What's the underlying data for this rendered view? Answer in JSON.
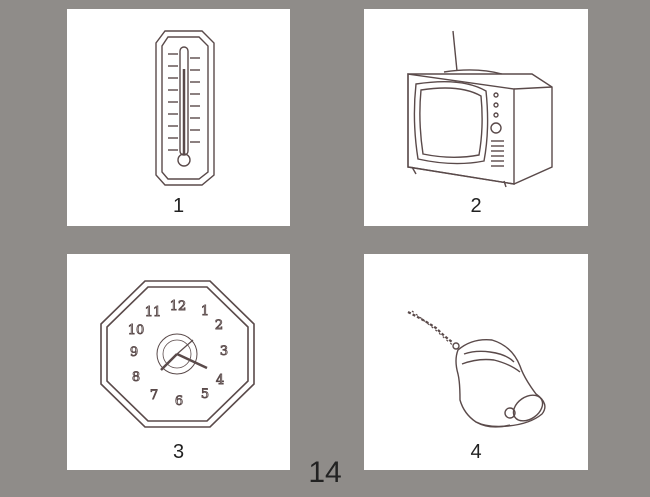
{
  "cards": [
    {
      "number": "1",
      "icon": "thermometer-icon"
    },
    {
      "number": "2",
      "icon": "television-icon"
    },
    {
      "number": "3",
      "icon": "wall-clock-icon",
      "clock_numerals": [
        "12",
        "1",
        "2",
        "3",
        "4",
        "5",
        "6",
        "7",
        "8",
        "9",
        "10",
        "11"
      ]
    },
    {
      "number": "4",
      "icon": "bell-icon"
    }
  ],
  "page_number": "14",
  "colors": {
    "background": "#8f8c89",
    "card": "#ffffff",
    "line": "#5a4a4a"
  }
}
